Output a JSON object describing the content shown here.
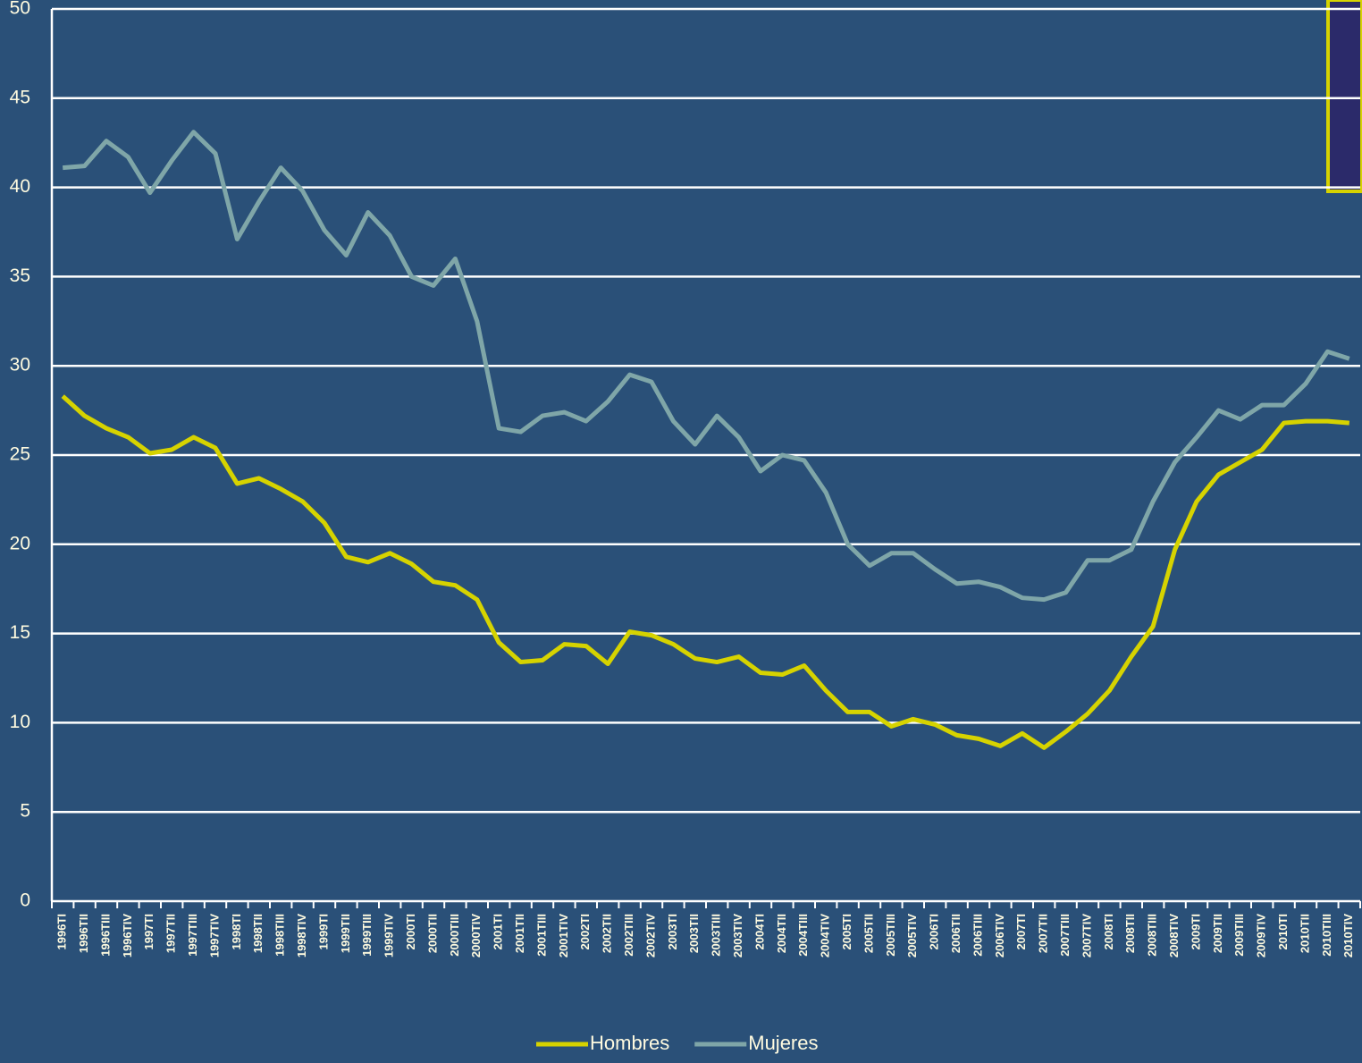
{
  "chart_data": {
    "type": "line",
    "categories": [
      "1996TI",
      "1996TII",
      "1996TIII",
      "1996TIV",
      "1997TI",
      "1997TII",
      "1997TIII",
      "1997TIV",
      "1998TI",
      "1998TII",
      "1998TIII",
      "1998TIV",
      "1999TI",
      "1999TII",
      "1999TIII",
      "1999TIV",
      "2000TI",
      "2000TII",
      "2000TIII",
      "2000TIV",
      "2001TI",
      "2001TII",
      "2001TIII",
      "2001TIV",
      "2002TI",
      "2002TII",
      "2002TIII",
      "2002TIV",
      "2003TI",
      "2003TII",
      "2003TIII",
      "2003TIV",
      "2004TI",
      "2004TII",
      "2004TIII",
      "2004TIV",
      "2005TI",
      "2005TII",
      "2005TIII",
      "2005TIV",
      "2006TI",
      "2006TII",
      "2006TIII",
      "2006TIV",
      "2007TI",
      "2007TII",
      "2007TIII",
      "2007TIV",
      "2008TI",
      "2008TII",
      "2008TIII",
      "2008TIV",
      "2009TI",
      "2009TII",
      "2009TIII",
      "2009TIV",
      "2010TI",
      "2010TII",
      "2010TIII",
      "2010TIV"
    ],
    "series": [
      {
        "name": "Hombres",
        "color": "#d6d300",
        "values": [
          28.3,
          27.2,
          26.5,
          26.0,
          25.1,
          25.3,
          26.0,
          25.4,
          23.4,
          23.7,
          23.1,
          22.4,
          21.2,
          19.3,
          19.0,
          19.5,
          18.9,
          17.9,
          17.7,
          16.9,
          14.5,
          13.4,
          13.5,
          14.4,
          14.3,
          13.3,
          15.1,
          14.9,
          14.4,
          13.6,
          13.4,
          13.7,
          12.8,
          12.7,
          13.2,
          11.8,
          10.6,
          10.6,
          9.8,
          10.2,
          9.9,
          9.3,
          9.1,
          8.7,
          9.4,
          8.6,
          9.5,
          10.5,
          11.8,
          13.7,
          15.4,
          19.7,
          22.4,
          23.9,
          24.6,
          25.3,
          26.8,
          26.9,
          26.9,
          26.8
        ]
      },
      {
        "name": "Mujeres",
        "color": "#7fa6a8",
        "values": [
          41.1,
          41.2,
          42.6,
          41.7,
          39.7,
          41.5,
          43.1,
          41.9,
          37.1,
          39.2,
          41.1,
          39.8,
          37.6,
          36.2,
          38.6,
          37.3,
          35.0,
          34.5,
          36.0,
          32.5,
          26.5,
          26.3,
          27.2,
          27.4,
          26.9,
          28.0,
          29.5,
          29.1,
          26.9,
          25.6,
          27.2,
          26.0,
          24.1,
          25.0,
          24.7,
          22.9,
          20.0,
          18.8,
          19.5,
          19.5,
          18.6,
          17.8,
          17.9,
          17.6,
          17.0,
          16.9,
          17.3,
          19.1,
          19.1,
          19.7,
          22.4,
          24.6,
          26.0,
          27.5,
          27.0,
          27.8,
          27.8,
          29.0,
          30.8,
          30.4
        ]
      }
    ],
    "ylim": [
      0,
      50
    ],
    "yticks": [
      0,
      5,
      10,
      15,
      20,
      25,
      30,
      35,
      40,
      45,
      50
    ],
    "grid": true,
    "legend": "bottom"
  }
}
